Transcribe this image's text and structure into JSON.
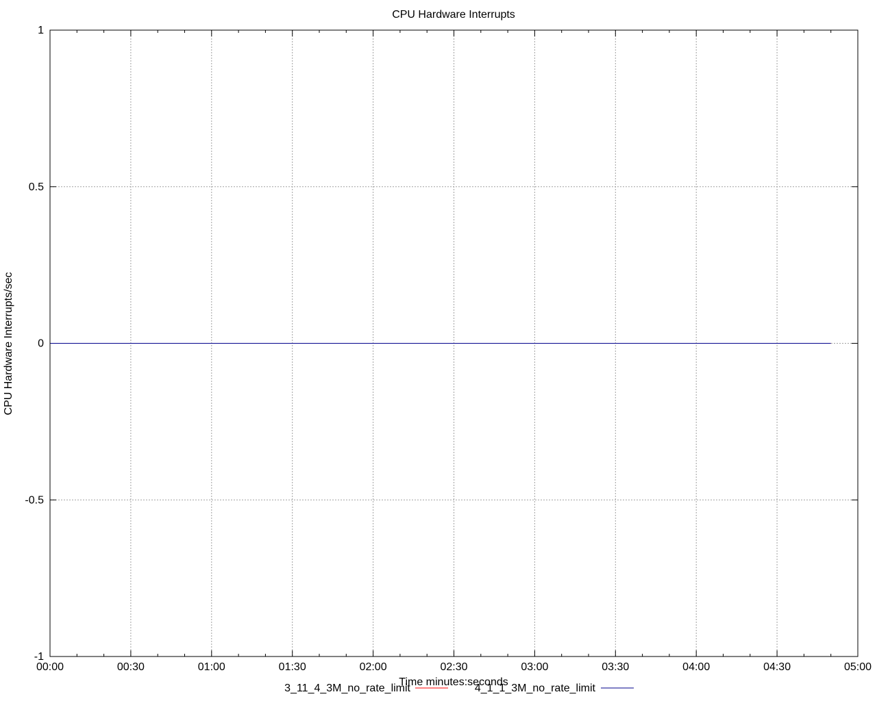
{
  "chart_data": {
    "type": "line",
    "title": "CPU Hardware Interrupts",
    "xlabel": "Time minutes:seconds",
    "ylabel": "CPU Hardware Interrupts/sec",
    "xlim": [
      0,
      300
    ],
    "ylim": [
      -1,
      1
    ],
    "x_ticks": [
      0,
      30,
      60,
      90,
      120,
      150,
      180,
      210,
      240,
      270,
      300
    ],
    "x_tick_labels": [
      "00:00",
      "00:30",
      "01:00",
      "01:30",
      "02:00",
      "02:30",
      "03:00",
      "03:30",
      "04:00",
      "04:30",
      "05:00"
    ],
    "x_minor_tick_step": 10,
    "y_ticks": [
      1,
      0.5,
      0,
      -0.5,
      -1
    ],
    "y_tick_labels": [
      "1",
      "0.5",
      "0",
      "-0.5",
      "-1"
    ],
    "grid": true,
    "legend_position": "bottom",
    "series": [
      {
        "name": "3_11_4_3M_no_rate_limit",
        "color": "#ff0000",
        "x": [
          0,
          290
        ],
        "y": [
          0,
          0
        ]
      },
      {
        "name": "4_1_1_3M_no_rate_limit",
        "color": "#00008b",
        "x": [
          0,
          290
        ],
        "y": [
          0,
          0
        ]
      }
    ]
  }
}
